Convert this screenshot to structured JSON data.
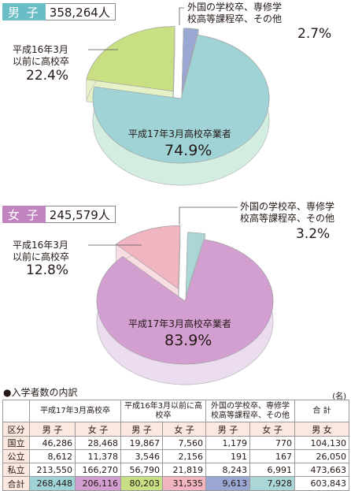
{
  "charts": [
    {
      "group_label": "男 子",
      "total": "358,264人",
      "label_color": "#6bbdc5",
      "slices": [
        {
          "line1": "平成17年3月高校卒業者",
          "line2": "",
          "percent": "74.9%",
          "value": 74.9,
          "color": "#9fd3d6",
          "side": "#d3eee1"
        },
        {
          "line1": "平成16年3月",
          "line2": "以前に高校卒",
          "percent": "22.4%",
          "value": 22.4,
          "color": "#c8df84",
          "side": "#e6f1c8"
        },
        {
          "line1": "外国の学校卒、専修学",
          "line2": "校高等課程卒、その他",
          "percent": "2.7%",
          "value": 2.7,
          "color": "#9aa7d3",
          "side": "#cdd3ea"
        }
      ]
    },
    {
      "group_label": "女 子",
      "total": "245,579人",
      "label_color": "#c284c0",
      "slices": [
        {
          "line1": "平成17年3月高校卒業者",
          "line2": "",
          "percent": "83.9%",
          "value": 83.9,
          "color": "#d39fd1",
          "side": "#ecdcef"
        },
        {
          "line1": "平成16年3月",
          "line2": "以前に高校卒",
          "percent": "12.8%",
          "value": 12.8,
          "color": "#f0b5c0",
          "side": "#f8dde2"
        },
        {
          "line1": "外国の学校卒、専修学",
          "line2": "校高等課程卒、その他",
          "percent": "3.2%",
          "value": 3.2,
          "color": "#aad6d8",
          "side": "#d8edee"
        }
      ]
    }
  ],
  "table": {
    "title": "●入学者数の内訳",
    "unit": "(名)",
    "header": [
      "平成17年3月高校卒",
      "平成16年3月以前に高校卒",
      "外国の学校卒、専修学校高等課程卒、その他",
      "合 計"
    ],
    "subheader": [
      "区分",
      "男 子",
      "女 子",
      "男 子",
      "女 子",
      "男 子",
      "女 子",
      "男 女"
    ],
    "rows": [
      [
        "国立",
        "46,286",
        "28,468",
        "19,867",
        "7,560",
        "1,179",
        "770",
        "104,130"
      ],
      [
        "公立",
        "8,612",
        "11,378",
        "3,546",
        "2,156",
        "191",
        "167",
        "26,050"
      ],
      [
        "私立",
        "213,550",
        "166,270",
        "56,790",
        "21,819",
        "8,243",
        "6,991",
        "473,663"
      ],
      [
        "合計",
        "268,448",
        "206,116",
        "80,203",
        "31,535",
        "9,613",
        "7,928",
        "603,843"
      ]
    ],
    "total_colors": [
      "#9fd3d6",
      "#d39fd1",
      "#c8df84",
      "#f0b5c0",
      "#9aa7d3",
      "#aad6d8",
      "#ffffff"
    ]
  }
}
